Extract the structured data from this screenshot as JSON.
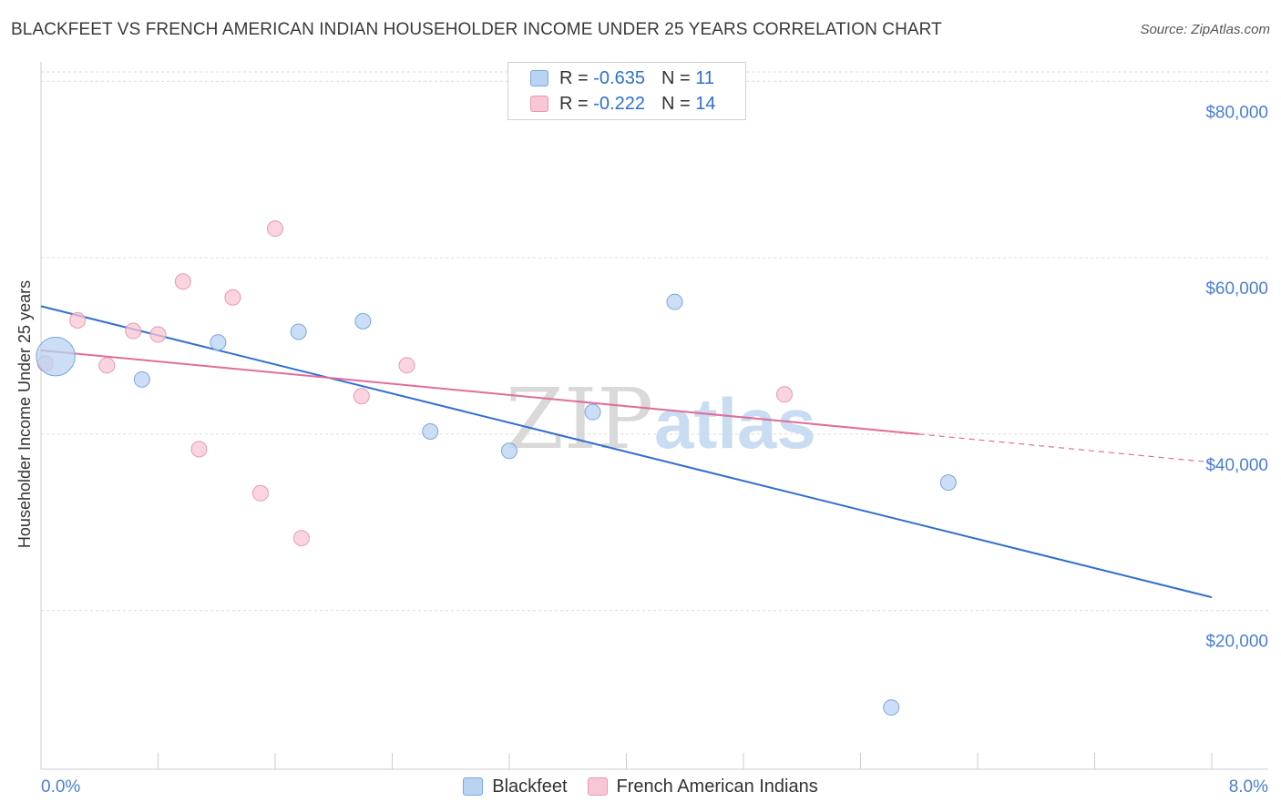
{
  "header": {
    "title": "BLACKFEET VS FRENCH AMERICAN INDIAN HOUSEHOLDER INCOME UNDER 25 YEARS CORRELATION CHART",
    "source": "Source: ZipAtlas.com"
  },
  "legend": {
    "rows": [
      {
        "r_label": "R =",
        "r_value": "-0.635",
        "n_label": "N =",
        "n_value": "11"
      },
      {
        "r_label": "R =",
        "r_value": "-0.222",
        "n_label": "N =",
        "n_value": "14"
      }
    ],
    "series": [
      "Blackfeet",
      "French American Indians"
    ]
  },
  "watermark": {
    "zip": "ZIP",
    "atlas": "atlas"
  },
  "colors": {
    "blackfeet_fill": "#b9d3f3",
    "blackfeet_stroke": "#7aa7de",
    "blackfeet_line": "#2f6fd0",
    "french_fill": "#f8c6d4",
    "french_stroke": "#e79ab1",
    "french_line": "#e06e97",
    "axis_label": "#4a7fd4",
    "grid": "#dcdcdc"
  },
  "chart_data": {
    "type": "scatter",
    "title": "BLACKFEET VS FRENCH AMERICAN INDIAN HOUSEHOLDER INCOME UNDER 25 YEARS CORRELATION CHART",
    "xlabel": "",
    "ylabel": "Householder Income Under 25 years",
    "xlim": [
      0,
      8
    ],
    "ylim": [
      2000,
      82000
    ],
    "x_tick_labels": [
      "0.0%",
      "8.0%"
    ],
    "y_ticks": [
      20000,
      40000,
      60000,
      80000
    ],
    "y_tick_labels": [
      "$20,000",
      "$40,000",
      "$60,000",
      "$80,000"
    ],
    "grid": true,
    "legend_position": "top-center",
    "series": [
      {
        "name": "Blackfeet",
        "points": [
          {
            "x": 0.1,
            "y": 48800,
            "size": 2.5
          },
          {
            "x": 0.69,
            "y": 46200
          },
          {
            "x": 1.21,
            "y": 50400
          },
          {
            "x": 1.76,
            "y": 51600
          },
          {
            "x": 2.2,
            "y": 52800
          },
          {
            "x": 2.66,
            "y": 40300
          },
          {
            "x": 3.2,
            "y": 38100
          },
          {
            "x": 3.77,
            "y": 42500
          },
          {
            "x": 4.33,
            "y": 55000
          },
          {
            "x": 6.2,
            "y": 34500
          },
          {
            "x": 5.81,
            "y": 9000
          }
        ],
        "trend": {
          "x0": 0,
          "y0": 54500,
          "x1": 8,
          "y1": 21500
        }
      },
      {
        "name": "French American Indians",
        "points": [
          {
            "x": 0.03,
            "y": 48000
          },
          {
            "x": 0.25,
            "y": 52900
          },
          {
            "x": 0.45,
            "y": 47800
          },
          {
            "x": 0.63,
            "y": 51700
          },
          {
            "x": 0.8,
            "y": 51300
          },
          {
            "x": 0.97,
            "y": 57300
          },
          {
            "x": 1.08,
            "y": 38300
          },
          {
            "x": 1.31,
            "y": 55500
          },
          {
            "x": 1.5,
            "y": 33300
          },
          {
            "x": 1.6,
            "y": 63300
          },
          {
            "x": 1.78,
            "y": 28200
          },
          {
            "x": 2.19,
            "y": 44300
          },
          {
            "x": 2.5,
            "y": 47800
          },
          {
            "x": 5.08,
            "y": 44500
          }
        ],
        "trend": {
          "x0": 0,
          "y0": 49500,
          "x1": 6.0,
          "y1": 40000,
          "dash_to_x": 8,
          "dash_to_y": 36800
        }
      }
    ]
  }
}
